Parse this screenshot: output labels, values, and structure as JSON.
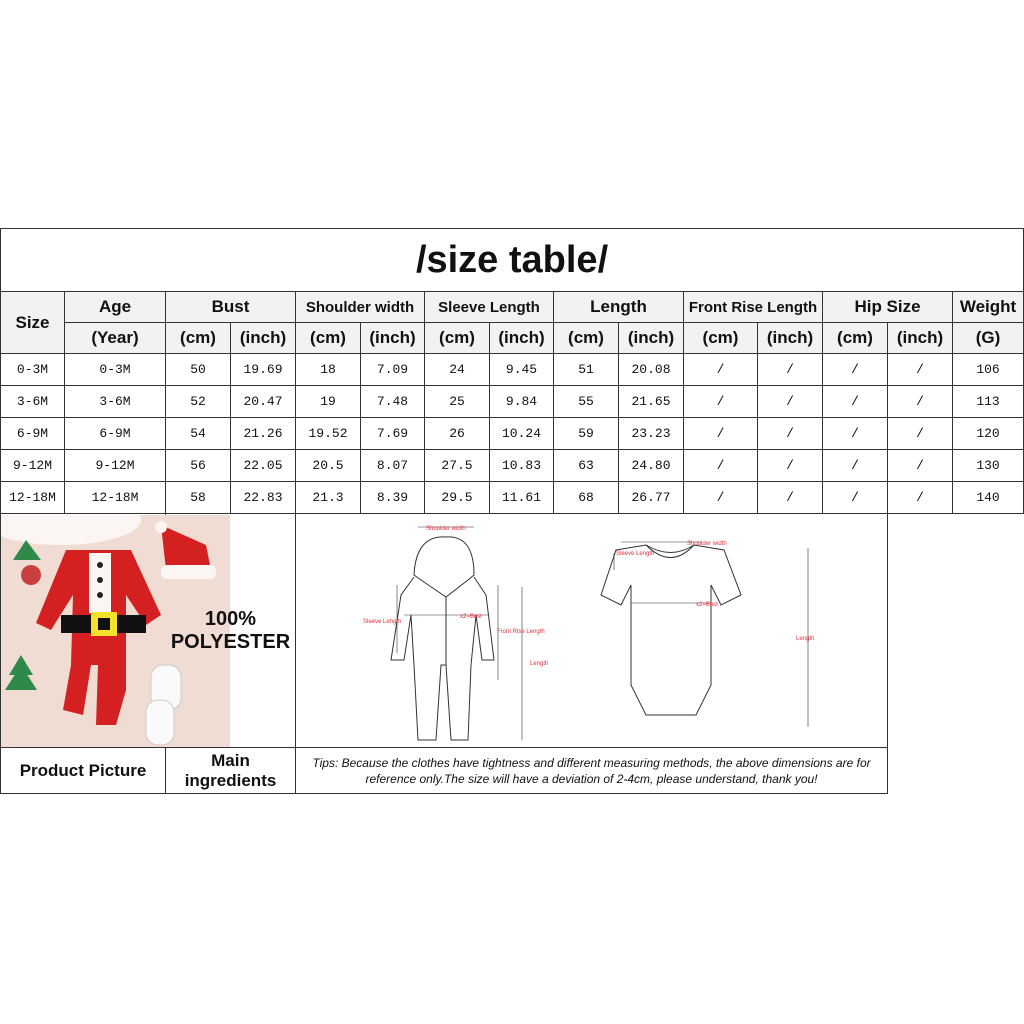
{
  "title": "/size table/",
  "headers": {
    "size": "Size",
    "age": "Age",
    "age_unit": "(Year)",
    "groups": [
      "Bust",
      "Shoulder width",
      "Sleeve Length",
      "Length",
      "Front Rise Length",
      "Hip Size"
    ],
    "cm": "(cm)",
    "inch": "(inch)",
    "weight": "Weight",
    "weight_unit": "(G)"
  },
  "rows": [
    [
      "0-3M",
      "0-3M",
      "50",
      "19.69",
      "18",
      "7.09",
      "24",
      "9.45",
      "51",
      "20.08",
      "/",
      "/",
      "/",
      "/",
      "106"
    ],
    [
      "3-6M",
      "3-6M",
      "52",
      "20.47",
      "19",
      "7.48",
      "25",
      "9.84",
      "55",
      "21.65",
      "/",
      "/",
      "/",
      "/",
      "113"
    ],
    [
      "6-9M",
      "6-9M",
      "54",
      "21.26",
      "19.52",
      "7.69",
      "26",
      "10.24",
      "59",
      "23.23",
      "/",
      "/",
      "/",
      "/",
      "120"
    ],
    [
      "9-12M",
      "9-12M",
      "56",
      "22.05",
      "20.5",
      "8.07",
      "27.5",
      "10.83",
      "63",
      "24.80",
      "/",
      "/",
      "/",
      "/",
      "130"
    ],
    [
      "12-18M",
      "12-18M",
      "58",
      "22.83",
      "21.3",
      "8.39",
      "29.5",
      "11.61",
      "68",
      "26.77",
      "/",
      "/",
      "/",
      "/",
      "140"
    ]
  ],
  "material": "100% POLYESTER",
  "diagram_labels": {
    "shoulder_width": "Shoulder width",
    "sleeve_length": "Sleeve Length",
    "bust": "x2=Bust",
    "front_rise": "Front Rise Length",
    "length": "Length"
  },
  "footer": {
    "product_picture": "Product Picture",
    "main_ingredients": "Main ingredients",
    "tips": "Tips: Because the clothes have tightness and different measuring methods, the above dimensions are for reference only.The size will have a deviation of 2-4cm, please understand, thank you!"
  },
  "colors": {
    "romper_red": "#d42020",
    "label_red": "#e0313a",
    "header_bg": "#f2f2f2"
  }
}
